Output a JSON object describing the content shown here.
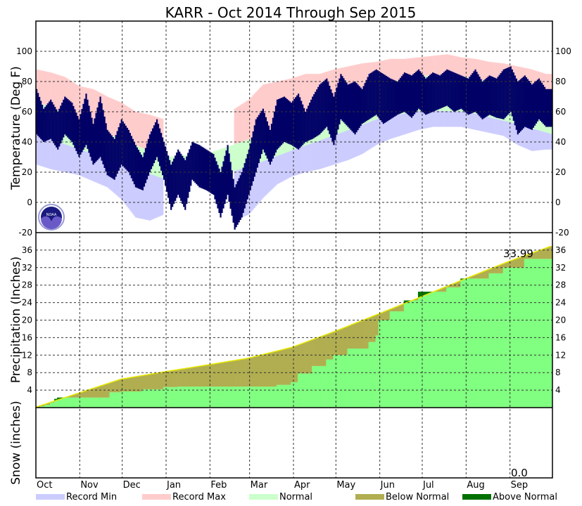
{
  "chart_data": {
    "type": "bar",
    "title": "KARR - Oct 2014 Through Sep 2015",
    "days_in_period": 365,
    "months": [
      {
        "label": "Oct",
        "start_day": 0
      },
      {
        "label": "Nov",
        "start_day": 31
      },
      {
        "label": "Dec",
        "start_day": 61
      },
      {
        "label": "Jan",
        "start_day": 92
      },
      {
        "label": "Feb",
        "start_day": 123
      },
      {
        "label": "Mar",
        "start_day": 151
      },
      {
        "label": "Apr",
        "start_day": 182
      },
      {
        "label": "May",
        "start_day": 212
      },
      {
        "label": "Jun",
        "start_day": 243
      },
      {
        "label": "Jul",
        "start_day": 273
      },
      {
        "label": "Aug",
        "start_day": 304
      },
      {
        "label": "Sep",
        "start_day": 335
      }
    ],
    "temperature": {
      "ylabel": "Temperature (Deg F)",
      "ylim": [
        -20,
        120
      ],
      "ticks": [
        100,
        80,
        60,
        40,
        20,
        0,
        -20
      ],
      "normal_high_monthly": [
        67,
        54,
        41,
        30,
        33,
        42,
        56,
        68,
        78,
        84,
        83,
        77,
        68
      ],
      "normal_low_monthly": [
        45,
        35,
        25,
        15,
        16,
        24,
        35,
        45,
        56,
        61,
        60,
        53,
        45
      ],
      "record_step_days": 10,
      "record_high": [
        88,
        86,
        83,
        77,
        75,
        70,
        66,
        60,
        58,
        55,
        null,
        null,
        null,
        null,
        62,
        68,
        78,
        80,
        82,
        85,
        85,
        88,
        90,
        92,
        93,
        95,
        95,
        96,
        97,
        98,
        96,
        95,
        93,
        92,
        90,
        88,
        85
      ],
      "record_low": [
        25,
        22,
        20,
        18,
        14,
        10,
        2,
        -10,
        -12,
        -8,
        null,
        null,
        null,
        null,
        -12,
        -8,
        3,
        12,
        17,
        20,
        22,
        25,
        28,
        32,
        38,
        42,
        45,
        48,
        50,
        50,
        50,
        48,
        46,
        44,
        38,
        34,
        35
      ],
      "observed_step_days": 5,
      "observed_high": [
        75,
        62,
        68,
        60,
        70,
        66,
        55,
        72,
        52,
        70,
        48,
        42,
        55,
        48,
        38,
        30,
        45,
        55,
        40,
        25,
        35,
        28,
        40,
        38,
        35,
        32,
        20,
        38,
        10,
        20,
        35,
        55,
        62,
        48,
        68,
        70,
        66,
        72,
        60,
        70,
        78,
        82,
        70,
        85,
        78,
        80,
        75,
        85,
        88,
        85,
        82,
        80,
        86,
        84,
        88,
        82,
        86,
        84,
        88,
        86,
        84,
        82,
        88,
        80,
        84,
        82,
        88,
        90,
        80,
        84,
        78,
        82,
        75
      ],
      "observed_low": [
        45,
        40,
        42,
        35,
        45,
        40,
        30,
        38,
        25,
        30,
        18,
        15,
        25,
        20,
        10,
        8,
        20,
        30,
        15,
        -5,
        5,
        -5,
        15,
        10,
        8,
        5,
        -10,
        5,
        -18,
        -10,
        5,
        20,
        35,
        25,
        35,
        40,
        38,
        35,
        40,
        42,
        45,
        50,
        38,
        55,
        50,
        45,
        52,
        55,
        58,
        52,
        55,
        58,
        60,
        56,
        62,
        58,
        60,
        62,
        64,
        60,
        62,
        58,
        60,
        55,
        58,
        56,
        55,
        60,
        45,
        50,
        48,
        55,
        50
      ]
    },
    "precipitation": {
      "ylabel": "Precipitation (Inches)",
      "ylim": [
        0,
        40
      ],
      "ticks": [
        36,
        32,
        28,
        24,
        20,
        16,
        12,
        8,
        4
      ],
      "normal_cumulative_monthly": [
        0,
        3.3,
        6.5,
        8.2,
        9.8,
        11.3,
        13.8,
        17.4,
        21.4,
        25.3,
        29.4,
        33.4,
        36.9
      ],
      "observed_cumulative_steps": [
        [
          0,
          0
        ],
        [
          3,
          0.3
        ],
        [
          6,
          0.6
        ],
        [
          10,
          1.2
        ],
        [
          13,
          2.0
        ],
        [
          15,
          2.3
        ],
        [
          52,
          3.5
        ],
        [
          60,
          3.7
        ],
        [
          75,
          4.2
        ],
        [
          90,
          4.7
        ],
        [
          100,
          4.8
        ],
        [
          170,
          5.2
        ],
        [
          180,
          5.8
        ],
        [
          185,
          7.8
        ],
        [
          195,
          9.5
        ],
        [
          205,
          11.0
        ],
        [
          210,
          12.0
        ],
        [
          220,
          13.5
        ],
        [
          235,
          15.0
        ],
        [
          240,
          16.5
        ],
        [
          242,
          20.0
        ],
        [
          250,
          22.0
        ],
        [
          260,
          24.5
        ],
        [
          270,
          26.5
        ],
        [
          290,
          27.5
        ],
        [
          300,
          29.5
        ],
        [
          320,
          30.7
        ],
        [
          330,
          32.0
        ],
        [
          345,
          34.0
        ]
      ],
      "total_label": "33.99"
    },
    "snow": {
      "ylabel": "Snow (inches)",
      "total_label": "0.0"
    },
    "legend": [
      {
        "label": "Record Min",
        "color": "#ccccff"
      },
      {
        "label": "Record Max",
        "color": "#ffcccc"
      },
      {
        "label": "Normal",
        "color": "#ccffcc"
      },
      {
        "label": "Below Normal",
        "color": "#b0ae50"
      },
      {
        "label": "Above Normal",
        "color": "#007000"
      }
    ],
    "colors": {
      "observed_temp": "#000066",
      "observed_precip": "#80ff80",
      "normal_precip_line": "#e8e800"
    },
    "logo_text": "NOAA"
  }
}
